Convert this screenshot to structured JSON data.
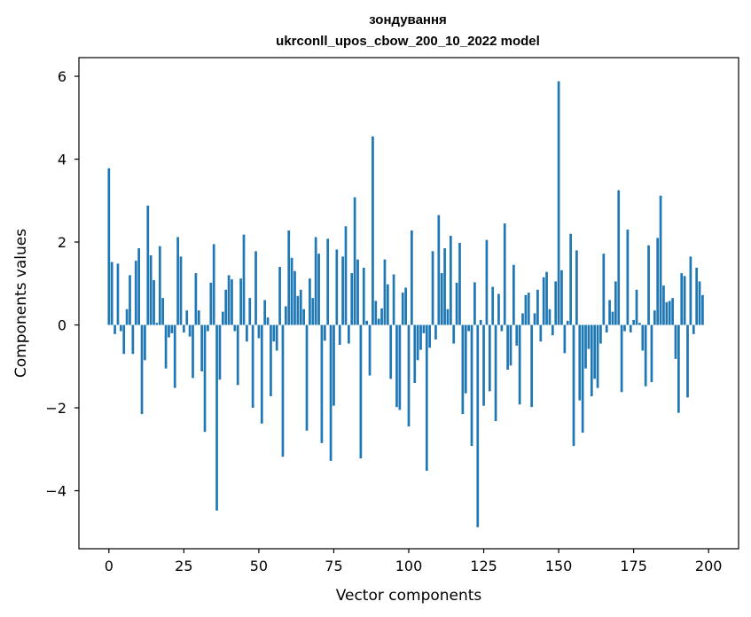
{
  "chart_data": {
    "type": "bar",
    "title_line1": "зондування",
    "title_line2": "ukrconll_upos_cbow_200_10_2022 model",
    "xlabel": "Vector components",
    "ylabel": "Components values",
    "xlim": [
      -10,
      210
    ],
    "ylim": [
      -5.4,
      6.45
    ],
    "xticks": [
      0,
      25,
      50,
      75,
      100,
      125,
      150,
      175,
      200
    ],
    "yticks": [
      -4,
      -2,
      0,
      2,
      4,
      6
    ],
    "ytick_labels": [
      "−4",
      "−2",
      "0",
      "2",
      "4",
      "6"
    ],
    "grid": false,
    "bar_color": "#1f77b4",
    "values": [
      3.78,
      1.52,
      -0.22,
      1.48,
      -0.15,
      -0.7,
      0.38,
      1.2,
      -0.7,
      1.55,
      1.85,
      -2.15,
      -0.85,
      2.88,
      1.68,
      1.08,
      0.05,
      1.9,
      0.65,
      -1.05,
      -0.3,
      -0.2,
      -1.52,
      2.12,
      1.65,
      -0.18,
      0.35,
      -0.28,
      -1.28,
      1.25,
      0.35,
      -1.12,
      -2.58,
      -0.15,
      1.02,
      1.95,
      -4.48,
      -1.32,
      0.32,
      0.85,
      1.2,
      1.1,
      -0.15,
      -1.45,
      1.12,
      2.18,
      -0.4,
      0.65,
      -2.0,
      1.78,
      -0.32,
      -2.38,
      0.6,
      0.18,
      -1.72,
      -0.4,
      -0.62,
      1.4,
      -3.18,
      0.45,
      2.28,
      1.62,
      1.3,
      0.7,
      0.85,
      0.38,
      -2.55,
      1.12,
      0.65,
      2.12,
      1.72,
      -2.85,
      -0.38,
      2.08,
      -3.28,
      -1.95,
      1.82,
      -0.48,
      1.65,
      2.38,
      -0.45,
      1.25,
      3.08,
      1.58,
      -3.22,
      1.38,
      0.1,
      -1.22,
      4.55,
      0.58,
      0.15,
      0.4,
      1.58,
      0.98,
      -1.3,
      1.22,
      -1.98,
      -2.05,
      0.78,
      0.9,
      -2.45,
      2.28,
      -1.4,
      -0.85,
      -0.6,
      -0.2,
      -3.52,
      -0.55,
      1.78,
      -0.35,
      2.65,
      1.25,
      1.85,
      0.38,
      2.15,
      -0.45,
      1.02,
      1.98,
      -2.15,
      -1.65,
      -0.15,
      -2.92,
      1.03,
      -4.88,
      0.12,
      -1.95,
      2.05,
      -1.6,
      0.92,
      -2.32,
      0.75,
      -0.15,
      2.45,
      -1.08,
      -0.98,
      1.45,
      -0.5,
      -1.92,
      0.28,
      0.72,
      0.78,
      -1.98,
      0.28,
      0.85,
      -0.4,
      1.15,
      1.28,
      0.38,
      -0.25,
      1.05,
      5.88,
      1.32,
      -0.68,
      0.1,
      2.2,
      -2.92,
      1.8,
      -1.82,
      -2.6,
      -1.05,
      -0.58,
      -1.72,
      -1.3,
      -1.52,
      -0.45,
      1.72,
      -0.18,
      0.6,
      0.32,
      1.05,
      3.25,
      -1.62,
      -0.15,
      2.3,
      -0.18,
      0.12,
      0.85,
      0.05,
      -0.62,
      -1.48,
      1.92,
      -1.38,
      0.35,
      2.1,
      3.12,
      0.95,
      0.55,
      0.58,
      0.65,
      -0.82,
      -2.12,
      1.25,
      1.18,
      -1.75,
      1.65,
      -0.22,
      1.38,
      1.05,
      0.72
    ]
  }
}
